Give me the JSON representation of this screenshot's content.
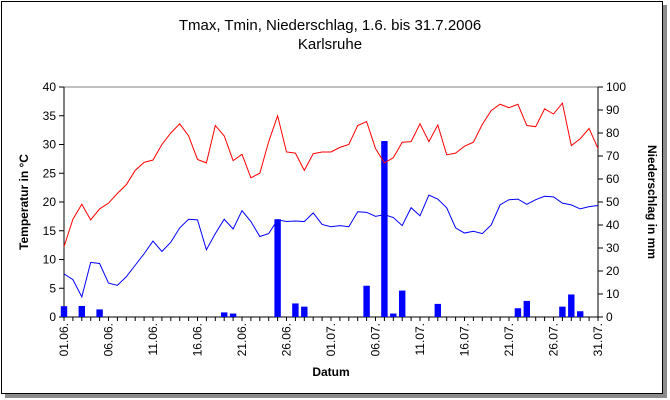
{
  "chart_data": {
    "type": "line+bar",
    "title_line1": "Tmax, Tmin, Niederschlag, 1.6. bis 31.7.2006",
    "title_line2": "Karlsruhe",
    "xlabel": "Datum",
    "ylabel_left": "Temperatur in °C",
    "ylabel_right": "Niederschlag in mm",
    "y_left": {
      "min": 0,
      "max": 40,
      "ticks": [
        "0",
        "5",
        "10",
        "15",
        "20",
        "25",
        "30",
        "35",
        "40"
      ]
    },
    "y_right": {
      "min": 0,
      "max": 100,
      "ticks": [
        "0",
        "10",
        "20",
        "30",
        "40",
        "50",
        "60",
        "70",
        "80",
        "90",
        "100"
      ]
    },
    "x_tick_labels": [
      {
        "day": 1,
        "label": "01.06."
      },
      {
        "day": 6,
        "label": "06.06."
      },
      {
        "day": 11,
        "label": "11.06."
      },
      {
        "day": 16,
        "label": "16.06."
      },
      {
        "day": 21,
        "label": "21.06."
      },
      {
        "day": 26,
        "label": "26.06."
      },
      {
        "day": 31,
        "label": "01.07."
      },
      {
        "day": 36,
        "label": "06.07."
      },
      {
        "day": 41,
        "label": "11.07."
      },
      {
        "day": 46,
        "label": "16.07."
      },
      {
        "day": 51,
        "label": "21.07."
      },
      {
        "day": 56,
        "label": "26.07."
      },
      {
        "day": 61,
        "label": "31.07."
      }
    ],
    "days": 61,
    "series": [
      {
        "key": "tmax",
        "kind": "line",
        "axis": "left",
        "color": "#ff0000",
        "values": [
          12.2,
          17.0,
          19.6,
          16.9,
          18.8,
          19.8,
          21.5,
          23.0,
          25.5,
          26.9,
          27.3,
          30.0,
          32.0,
          33.6,
          31.5,
          27.4,
          26.8,
          33.3,
          31.5,
          27.2,
          28.3,
          24.2,
          25.0,
          30.5,
          35.0,
          28.7,
          28.5,
          25.5,
          28.4,
          28.7,
          28.7,
          29.5,
          30.0,
          33.3,
          34.0,
          29.3,
          26.8,
          27.7,
          30.4,
          30.5,
          33.6,
          30.5,
          33.4,
          28.2,
          28.5,
          29.7,
          30.4,
          33.5,
          35.9,
          37.0,
          36.4,
          37.0,
          33.3,
          33.1,
          36.2,
          35.3,
          37.2,
          29.8,
          31.0,
          32.8,
          29.3
        ]
      },
      {
        "key": "tmin",
        "kind": "line",
        "axis": "left",
        "color": "#0000ff",
        "values": [
          7.5,
          6.5,
          3.5,
          9.5,
          9.3,
          5.9,
          5.5,
          7.0,
          9.0,
          11.0,
          13.2,
          11.4,
          13.0,
          15.5,
          17.0,
          16.9,
          11.7,
          14.5,
          17.0,
          15.3,
          18.5,
          16.6,
          14.0,
          14.5,
          16.9,
          16.6,
          16.7,
          16.6,
          18.1,
          16.1,
          15.7,
          15.9,
          15.7,
          18.3,
          18.2,
          17.5,
          17.8,
          17.3,
          15.9,
          19.0,
          17.6,
          21.2,
          20.5,
          19.0,
          15.5,
          14.6,
          14.9,
          14.5,
          16.0,
          19.5,
          20.4,
          20.5,
          19.6,
          20.4,
          21.0,
          20.9,
          19.8,
          19.5,
          18.8,
          19.2,
          19.4
        ]
      },
      {
        "key": "precip",
        "kind": "bar",
        "axis": "right",
        "color": "#0000ff",
        "values": [
          4.7,
          0,
          4.8,
          0,
          3.3,
          0,
          0,
          0,
          0,
          0,
          0,
          0,
          0,
          0,
          0,
          0,
          0,
          0,
          2.0,
          1.5,
          0,
          0,
          0,
          0,
          42.5,
          0,
          5.9,
          4.5,
          0,
          0,
          0,
          0,
          0,
          0,
          13.6,
          0,
          76.5,
          1.5,
          11.5,
          0,
          0,
          0,
          5.7,
          0,
          0,
          0,
          0,
          0,
          0,
          0,
          0,
          3.8,
          7.0,
          0,
          0,
          0,
          4.5,
          9.8,
          2.5,
          0,
          0
        ]
      }
    ],
    "colors": {
      "tmax": "#ff0000",
      "tmin": "#0000ff",
      "precip_bar": "#0000ff",
      "plot_border": "#808080",
      "frame_shadow": "#8c8c8c"
    }
  }
}
